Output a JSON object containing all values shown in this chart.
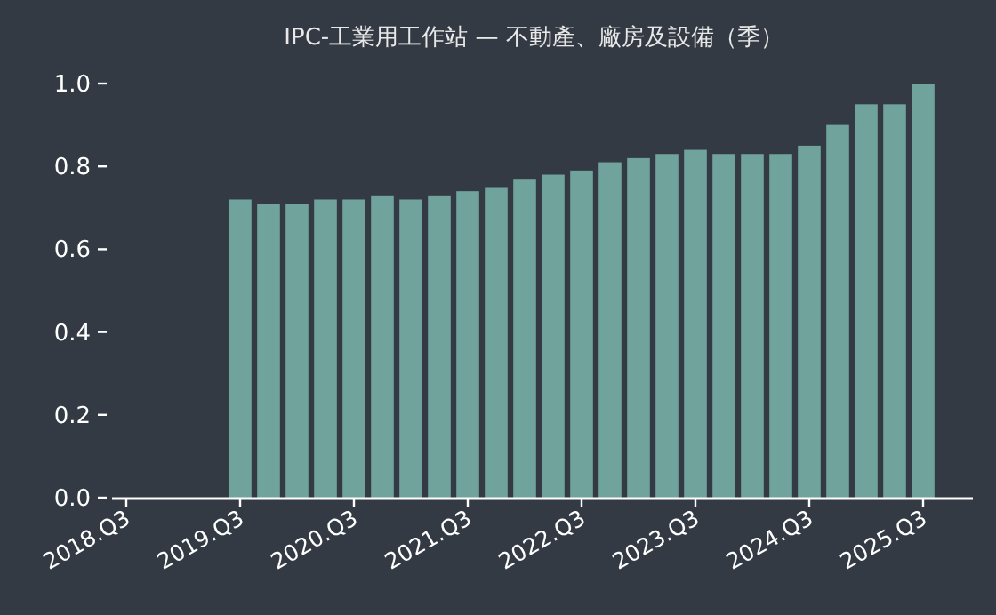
{
  "chart_data": {
    "type": "bar",
    "title": "IPC-工業用工作站 — 不動產、廠房及設備（季）",
    "categories": [
      "2018.Q3",
      null,
      null,
      null,
      "2019.Q3",
      null,
      null,
      null,
      "2020.Q3",
      null,
      null,
      null,
      "2021.Q3",
      null,
      null,
      null,
      "2022.Q3",
      null,
      null,
      null,
      "2023.Q3",
      null,
      null,
      null,
      "2024.Q3",
      null,
      null,
      null,
      "2025.Q3"
    ],
    "values": [
      null,
      null,
      null,
      null,
      0.72,
      0.71,
      0.71,
      0.72,
      0.72,
      0.73,
      0.72,
      0.73,
      0.74,
      0.75,
      0.77,
      0.78,
      0.79,
      0.81,
      0.82,
      0.83,
      0.84,
      0.83,
      0.83,
      0.83,
      0.85,
      0.9,
      0.95,
      0.95,
      1.0
    ],
    "color": "#6fa39b",
    "ylim": [
      0,
      1
    ],
    "yticks": [
      {
        "value": 0,
        "label": "0.0"
      },
      {
        "value": 0.2,
        "label": "0.2"
      },
      {
        "value": 0.4,
        "label": "0.4"
      },
      {
        "value": 0.6,
        "label": "0.6"
      },
      {
        "value": 0.8,
        "label": "0.8"
      },
      {
        "value": 1,
        "label": "1.0"
      }
    ],
    "grid": false
  }
}
